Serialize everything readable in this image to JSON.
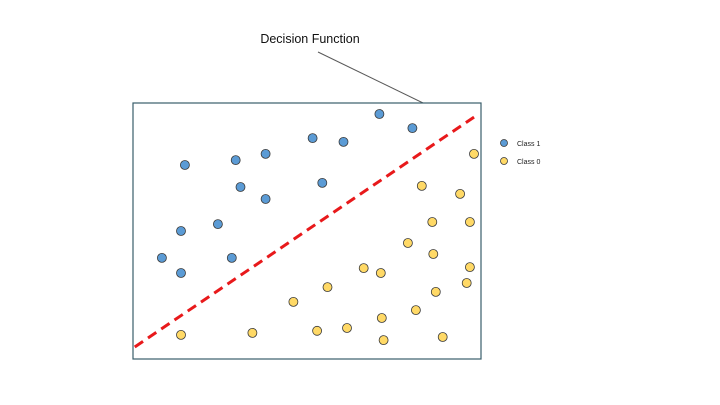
{
  "annotation": {
    "label": "Decision Function"
  },
  "legend": {
    "position": "right of plot, top",
    "items": [
      {
        "label": "Class 1",
        "color": "#5b9bd5",
        "class": "1"
      },
      {
        "label": "Class 0",
        "color": "#ffd966",
        "class": "0"
      }
    ]
  },
  "colors": {
    "class_1": "#5b9bd5",
    "class_0": "#ffd966",
    "point_stroke": "#3a3a3a",
    "decision_line": "#e8191b",
    "plot_border": "#385d6a",
    "arrow": "#595959"
  },
  "chart_data": {
    "type": "scatter",
    "xlim": [
      0,
      100
    ],
    "ylim": [
      0,
      100
    ],
    "grid": false,
    "axes_labels_shown": false,
    "series": [
      {
        "name": "Class 1",
        "points": [
          {
            "x": 8.3,
            "y": 39.5
          },
          {
            "x": 13.8,
            "y": 33.6
          },
          {
            "x": 13.8,
            "y": 50.0
          },
          {
            "x": 14.9,
            "y": 75.8
          },
          {
            "x": 24.4,
            "y": 52.7
          },
          {
            "x": 28.4,
            "y": 39.5
          },
          {
            "x": 29.5,
            "y": 77.7
          },
          {
            "x": 30.9,
            "y": 67.2
          },
          {
            "x": 38.1,
            "y": 62.5
          },
          {
            "x": 38.1,
            "y": 80.1
          },
          {
            "x": 51.6,
            "y": 86.3
          },
          {
            "x": 54.4,
            "y": 68.8
          },
          {
            "x": 60.5,
            "y": 84.8
          },
          {
            "x": 70.8,
            "y": 95.7
          },
          {
            "x": 80.3,
            "y": 90.2
          }
        ]
      },
      {
        "name": "Class 0",
        "points": [
          {
            "x": 13.8,
            "y": 9.4
          },
          {
            "x": 34.3,
            "y": 10.2
          },
          {
            "x": 46.1,
            "y": 22.3
          },
          {
            "x": 52.9,
            "y": 11.0
          },
          {
            "x": 55.9,
            "y": 28.1
          },
          {
            "x": 61.5,
            "y": 12.1
          },
          {
            "x": 66.3,
            "y": 35.5
          },
          {
            "x": 71.2,
            "y": 33.6
          },
          {
            "x": 71.5,
            "y": 16.0
          },
          {
            "x": 72.0,
            "y": 7.4
          },
          {
            "x": 79.0,
            "y": 45.3
          },
          {
            "x": 81.3,
            "y": 19.1
          },
          {
            "x": 83.0,
            "y": 67.6
          },
          {
            "x": 86.0,
            "y": 53.5
          },
          {
            "x": 86.3,
            "y": 41.0
          },
          {
            "x": 87.0,
            "y": 26.2
          },
          {
            "x": 89.0,
            "y": 8.6
          },
          {
            "x": 94.0,
            "y": 64.5
          },
          {
            "x": 95.9,
            "y": 29.7
          },
          {
            "x": 96.8,
            "y": 35.9
          },
          {
            "x": 96.8,
            "y": 53.5
          },
          {
            "x": 98.0,
            "y": 80.1
          }
        ]
      }
    ],
    "decision_function": {
      "style": "dashed",
      "from": {
        "x": 0.5,
        "y": 4.7
      },
      "to": {
        "x": 98.0,
        "y": 94.5
      }
    }
  }
}
